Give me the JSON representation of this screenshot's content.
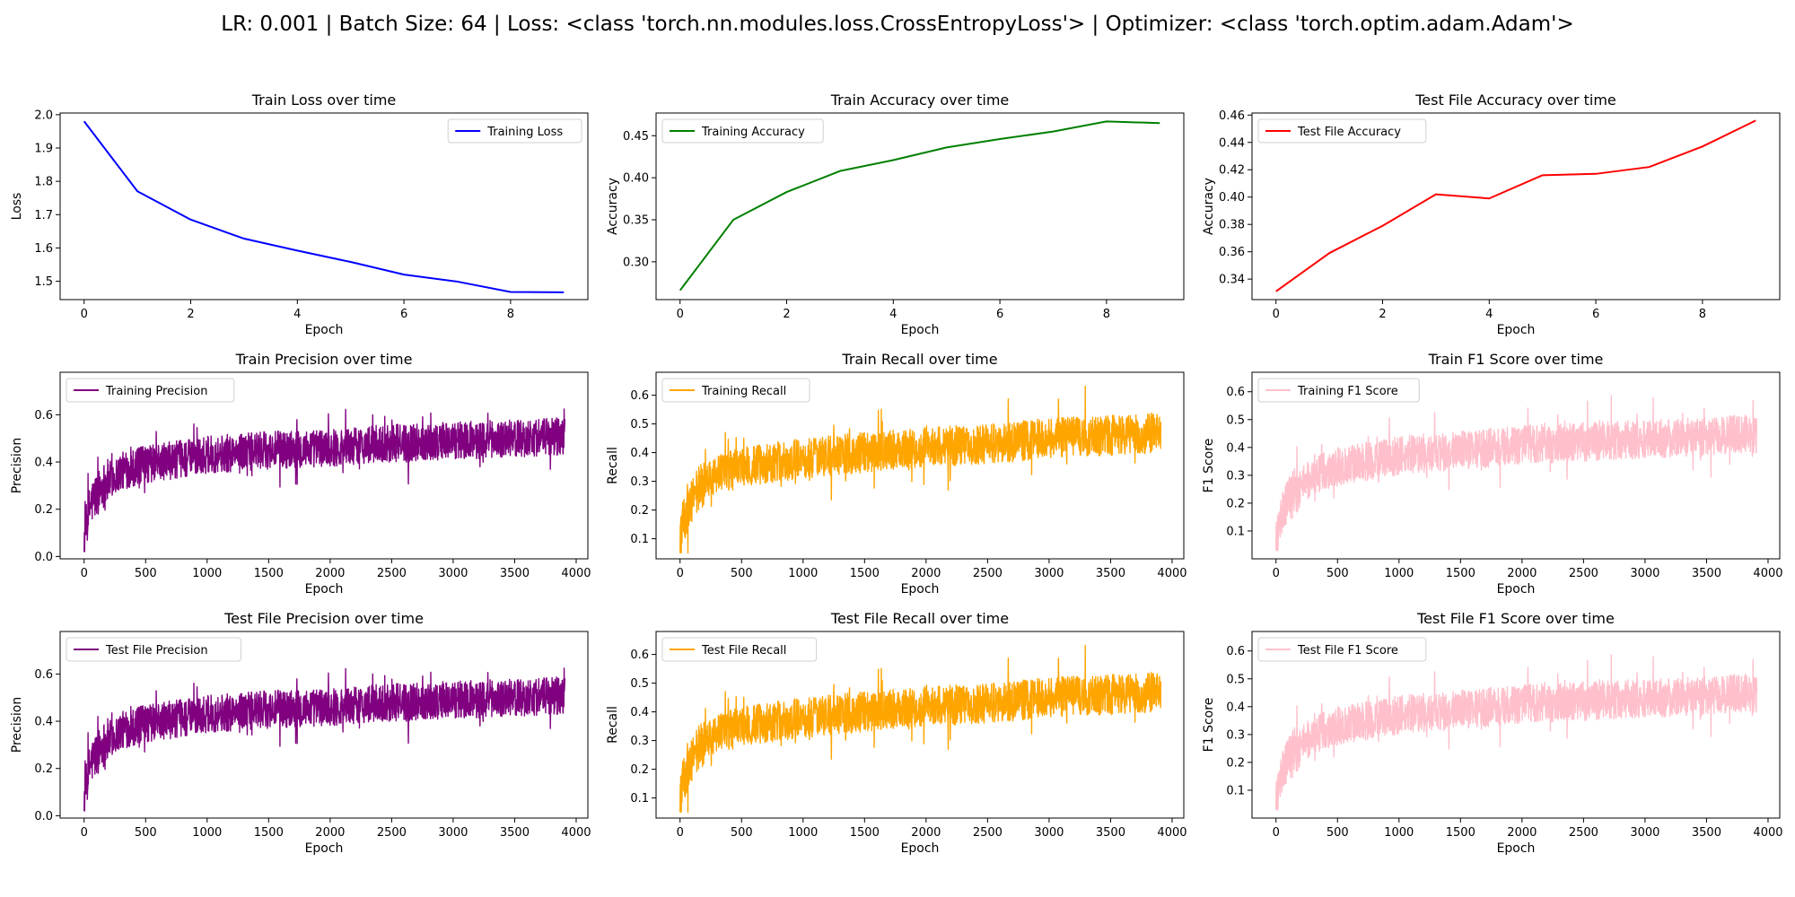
{
  "suptitle": "LR: 0.001 | Batch Size: 64 | Loss: <class 'torch.nn.modules.loss.CrossEntropyLoss'> | Optimizer: <class 'torch.optim.adam.Adam'>",
  "chart_data": [
    {
      "type": "line",
      "title": "Train Loss over time",
      "xlabel": "Epoch",
      "ylabel": "Loss",
      "xlim": [
        -0.45,
        9.45
      ],
      "ylim": [
        1.445,
        2.005
      ],
      "xticks": [
        0,
        2,
        4,
        6,
        8
      ],
      "yticks": [
        1.5,
        1.6,
        1.7,
        1.8,
        1.9,
        2.0
      ],
      "legend": "upper right",
      "series": [
        {
          "name": "Training Loss",
          "color": "#0000ff",
          "x": [
            0,
            1,
            2,
            3,
            4,
            5,
            6,
            7,
            8,
            9
          ],
          "values": [
            1.98,
            1.77,
            1.685,
            1.628,
            1.592,
            1.558,
            1.52,
            1.499,
            1.468,
            1.467
          ]
        }
      ]
    },
    {
      "type": "line",
      "title": "Train Accuracy over time",
      "xlabel": "Epoch",
      "ylabel": "Accuracy",
      "xlim": [
        -0.45,
        9.45
      ],
      "ylim": [
        0.255,
        0.477
      ],
      "xticks": [
        0,
        2,
        4,
        6,
        8
      ],
      "yticks": [
        0.3,
        0.35,
        0.4,
        0.45
      ],
      "legend": "upper left",
      "series": [
        {
          "name": "Training Accuracy",
          "color": "#008000",
          "x": [
            0,
            1,
            2,
            3,
            4,
            5,
            6,
            7,
            8,
            9
          ],
          "values": [
            0.266,
            0.35,
            0.383,
            0.408,
            0.421,
            0.436,
            0.446,
            0.455,
            0.467,
            0.465
          ]
        }
      ]
    },
    {
      "type": "line",
      "title": "Test File Accuracy over time",
      "xlabel": "Epoch",
      "ylabel": "Accuracy",
      "xlim": [
        -0.45,
        9.45
      ],
      "ylim": [
        0.325,
        0.4615
      ],
      "xticks": [
        0,
        2,
        4,
        6,
        8
      ],
      "yticks": [
        0.34,
        0.36,
        0.38,
        0.4,
        0.42,
        0.44,
        0.46
      ],
      "legend": "upper left",
      "series": [
        {
          "name": "Test File Accuracy",
          "color": "#ff0000",
          "x": [
            0,
            1,
            2,
            3,
            4,
            5,
            6,
            7,
            8,
            9
          ],
          "values": [
            0.331,
            0.359,
            0.379,
            0.402,
            0.399,
            0.416,
            0.417,
            0.422,
            0.437,
            0.456
          ]
        }
      ]
    },
    {
      "type": "line",
      "title": "Train Precision over time",
      "xlabel": "Epoch",
      "ylabel": "Precision",
      "xlim": [
        -195,
        4095
      ],
      "ylim": [
        -0.01,
        0.78
      ],
      "xticks": [
        0,
        500,
        1000,
        1500,
        2000,
        2500,
        3000,
        3500,
        4000
      ],
      "yticks": [
        0.0,
        0.2,
        0.4,
        0.6
      ],
      "legend": "upper left",
      "series": [
        {
          "name": "Training Precision",
          "color": "#800080",
          "n_points": 3910,
          "trend": [
            [
              0,
              0.07
            ],
            [
              50,
              0.22
            ],
            [
              150,
              0.3
            ],
            [
              300,
              0.36
            ],
            [
              500,
              0.39
            ],
            [
              1000,
              0.43
            ],
            [
              1500,
              0.45
            ],
            [
              2000,
              0.46
            ],
            [
              2500,
              0.48
            ],
            [
              3000,
              0.49
            ],
            [
              3500,
              0.5
            ],
            [
              3910,
              0.51
            ]
          ],
          "spread": 0.08,
          "min": 0.02,
          "max": 0.75
        }
      ]
    },
    {
      "type": "line",
      "title": "Train Recall over time",
      "xlabel": "Epoch",
      "ylabel": "Recall",
      "xlim": [
        -195,
        4095
      ],
      "ylim": [
        0.03,
        0.68
      ],
      "xticks": [
        0,
        500,
        1000,
        1500,
        2000,
        2500,
        3000,
        3500,
        4000
      ],
      "yticks": [
        0.1,
        0.2,
        0.3,
        0.4,
        0.5,
        0.6
      ],
      "legend": "upper left",
      "series": [
        {
          "name": "Training Recall",
          "color": "#ffa500",
          "n_points": 3910,
          "trend": [
            [
              0,
              0.1
            ],
            [
              50,
              0.2
            ],
            [
              150,
              0.27
            ],
            [
              300,
              0.32
            ],
            [
              500,
              0.35
            ],
            [
              1000,
              0.38
            ],
            [
              1500,
              0.4
            ],
            [
              2000,
              0.42
            ],
            [
              2500,
              0.43
            ],
            [
              3000,
              0.45
            ],
            [
              3500,
              0.46
            ],
            [
              3910,
              0.47
            ]
          ],
          "spread": 0.07,
          "min": 0.05,
          "max": 0.65
        }
      ]
    },
    {
      "type": "line",
      "title": "Train F1 Score over time",
      "xlabel": "Epoch",
      "ylabel": "F1 Score",
      "xlim": [
        -195,
        4095
      ],
      "ylim": [
        0.0,
        0.67
      ],
      "xticks": [
        0,
        500,
        1000,
        1500,
        2000,
        2500,
        3000,
        3500,
        4000
      ],
      "yticks": [
        0.1,
        0.2,
        0.3,
        0.4,
        0.5,
        0.6
      ],
      "legend": "upper left",
      "series": [
        {
          "name": "Training F1 Score",
          "color": "#ffc0cb",
          "n_points": 3910,
          "trend": [
            [
              0,
              0.05
            ],
            [
              50,
              0.17
            ],
            [
              150,
              0.24
            ],
            [
              300,
              0.3
            ],
            [
              500,
              0.33
            ],
            [
              1000,
              0.37
            ],
            [
              1500,
              0.39
            ],
            [
              2000,
              0.41
            ],
            [
              2500,
              0.42
            ],
            [
              3000,
              0.43
            ],
            [
              3500,
              0.44
            ],
            [
              3910,
              0.45
            ]
          ],
          "spread": 0.07,
          "min": 0.03,
          "max": 0.64
        }
      ]
    },
    {
      "type": "line",
      "title": "Test File Precision over time",
      "xlabel": "Epoch",
      "ylabel": "Precision",
      "xlim": [
        -195,
        4095
      ],
      "ylim": [
        -0.01,
        0.78
      ],
      "xticks": [
        0,
        500,
        1000,
        1500,
        2000,
        2500,
        3000,
        3500,
        4000
      ],
      "yticks": [
        0.0,
        0.2,
        0.4,
        0.6
      ],
      "legend": "upper left",
      "series": [
        {
          "name": "Test File Precision",
          "color": "#800080",
          "n_points": 3910,
          "trend": [
            [
              0,
              0.07
            ],
            [
              50,
              0.22
            ],
            [
              150,
              0.3
            ],
            [
              300,
              0.36
            ],
            [
              500,
              0.39
            ],
            [
              1000,
              0.43
            ],
            [
              1500,
              0.45
            ],
            [
              2000,
              0.46
            ],
            [
              2500,
              0.48
            ],
            [
              3000,
              0.49
            ],
            [
              3500,
              0.5
            ],
            [
              3910,
              0.51
            ]
          ],
          "spread": 0.08,
          "min": 0.02,
          "max": 0.75
        }
      ]
    },
    {
      "type": "line",
      "title": "Test File Recall over time",
      "xlabel": "Epoch",
      "ylabel": "Recall",
      "xlim": [
        -195,
        4095
      ],
      "ylim": [
        0.03,
        0.68
      ],
      "xticks": [
        0,
        500,
        1000,
        1500,
        2000,
        2500,
        3000,
        3500,
        4000
      ],
      "yticks": [
        0.1,
        0.2,
        0.3,
        0.4,
        0.5,
        0.6
      ],
      "legend": "upper left",
      "series": [
        {
          "name": "Test File Recall",
          "color": "#ffa500",
          "n_points": 3910,
          "trend": [
            [
              0,
              0.1
            ],
            [
              50,
              0.2
            ],
            [
              150,
              0.27
            ],
            [
              300,
              0.32
            ],
            [
              500,
              0.35
            ],
            [
              1000,
              0.38
            ],
            [
              1500,
              0.4
            ],
            [
              2000,
              0.42
            ],
            [
              2500,
              0.43
            ],
            [
              3000,
              0.45
            ],
            [
              3500,
              0.46
            ],
            [
              3910,
              0.47
            ]
          ],
          "spread": 0.07,
          "min": 0.05,
          "max": 0.65
        }
      ]
    },
    {
      "type": "line",
      "title": "Test File F1 Score over time",
      "xlabel": "Epoch",
      "ylabel": "F1 Score",
      "xlim": [
        -195,
        4095
      ],
      "ylim": [
        0.0,
        0.67
      ],
      "xticks": [
        0,
        500,
        1000,
        1500,
        2000,
        2500,
        3000,
        3500,
        4000
      ],
      "yticks": [
        0.1,
        0.2,
        0.3,
        0.4,
        0.5,
        0.6
      ],
      "legend": "upper left",
      "series": [
        {
          "name": "Test File F1 Score",
          "color": "#ffc0cb",
          "n_points": 3910,
          "trend": [
            [
              0,
              0.05
            ],
            [
              50,
              0.17
            ],
            [
              150,
              0.24
            ],
            [
              300,
              0.3
            ],
            [
              500,
              0.33
            ],
            [
              1000,
              0.37
            ],
            [
              1500,
              0.39
            ],
            [
              2000,
              0.41
            ],
            [
              2500,
              0.42
            ],
            [
              3000,
              0.43
            ],
            [
              3500,
              0.44
            ],
            [
              3910,
              0.45
            ]
          ],
          "spread": 0.07,
          "min": 0.03,
          "max": 0.64
        }
      ]
    }
  ]
}
